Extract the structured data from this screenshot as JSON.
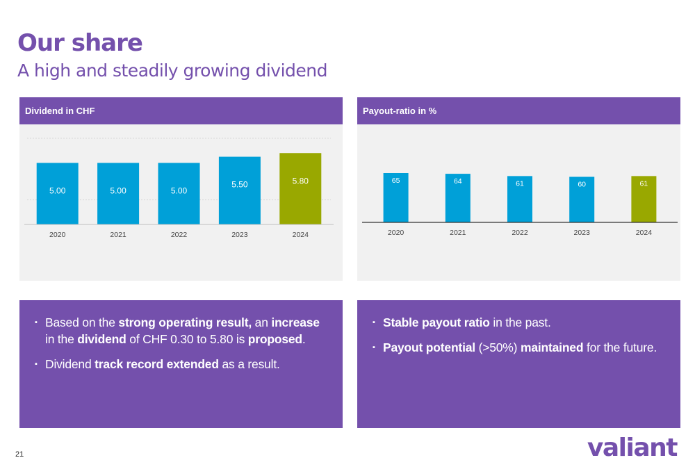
{
  "header": {
    "title": "Our share",
    "subtitle": "A high and steadily growing dividend"
  },
  "colors": {
    "brand": "#7450AC",
    "bar_blue": "#00A0D8",
    "bar_green": "#99A800",
    "panel_bg": "#F1F1F1"
  },
  "chart_data": [
    {
      "type": "bar",
      "title": "Dividend in CHF",
      "categories": [
        "2020",
        "2021",
        "2022",
        "2023",
        "2024"
      ],
      "values": [
        5.0,
        5.0,
        5.0,
        5.5,
        5.8
      ],
      "labels": [
        "5.00",
        "5.00",
        "5.00",
        "5.50",
        "5.80"
      ],
      "highlight_index": 4,
      "ylim": [
        0,
        7
      ],
      "grid": true,
      "xlabel": "",
      "ylabel": ""
    },
    {
      "type": "bar",
      "title": "Payout-ratio in %",
      "categories": [
        "2020",
        "2021",
        "2022",
        "2023",
        "2024"
      ],
      "values": [
        65,
        64,
        61,
        60,
        61
      ],
      "labels": [
        "65",
        "64",
        "61",
        "60",
        "61"
      ],
      "highlight_index": 4,
      "ylim": [
        0,
        65
      ],
      "grid": false,
      "xlabel": "",
      "ylabel": ""
    }
  ],
  "left_text": {
    "bullets": [
      [
        {
          "t": "Based on the "
        },
        {
          "t": "strong operating result,",
          "b": true
        },
        {
          "t": " an "
        },
        {
          "t": "increase",
          "b": true
        },
        {
          "t": " in the "
        },
        {
          "t": "dividend",
          "b": true
        },
        {
          "t": " of CHF 0.30 to 5.80 is "
        },
        {
          "t": "proposed",
          "b": true
        },
        {
          "t": "."
        }
      ],
      [
        {
          "t": "Dividend "
        },
        {
          "t": "track record extended",
          "b": true
        },
        {
          "t": " as a result."
        }
      ]
    ]
  },
  "right_text": {
    "bullets": [
      [
        {
          "t": "Stable payout ratio",
          "b": true
        },
        {
          "t": " in the past."
        }
      ],
      [
        {
          "t": "Payout potential",
          "b": true
        },
        {
          "t": " (>50%) "
        },
        {
          "t": "maintained",
          "b": true
        },
        {
          "t": " for the future."
        }
      ]
    ]
  },
  "footer": {
    "page_number": "21",
    "logo_text": "valiant"
  }
}
